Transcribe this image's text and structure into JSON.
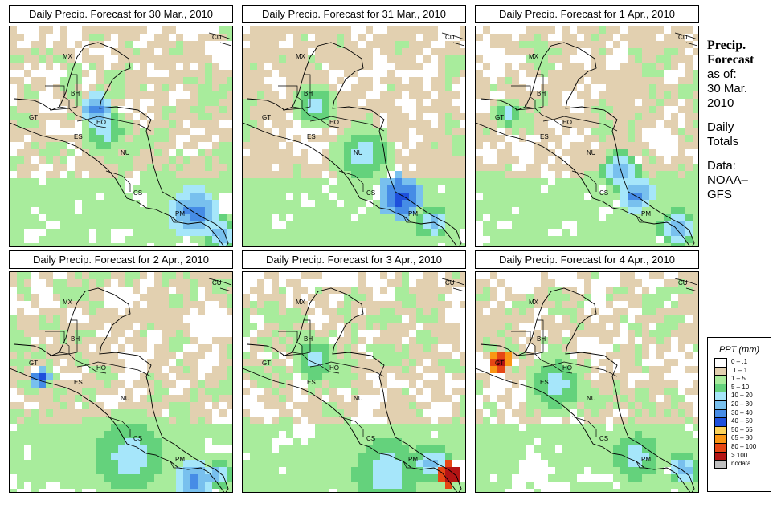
{
  "panels": [
    {
      "title": "Daily Precip. Forecast for  30 Mar., 2010"
    },
    {
      "title": "Daily Precip. Forecast for  31 Mar., 2010"
    },
    {
      "title": "Daily Precip. Forecast for  1 Apr., 2010"
    },
    {
      "title": "Daily Precip. Forecast for  2 Apr., 2010"
    },
    {
      "title": "Daily Precip. Forecast for  3 Apr., 2010"
    },
    {
      "title": "Daily Precip. Forecast for  4 Apr., 2010"
    }
  ],
  "country_labels": [
    "MX",
    "CU",
    "BH",
    "GT",
    "HO",
    "ES",
    "NU",
    "CS",
    "PM"
  ],
  "sidebar": {
    "heading_1": "Precip.",
    "heading_2": "Forecast",
    "as_of": "as of:",
    "date_1": "30 Mar.",
    "date_2": "2010",
    "daily_1": "Daily",
    "daily_2": "Totals",
    "data_1": "Data:",
    "data_2": "NOAA–",
    "data_3": "GFS"
  },
  "legend": {
    "title": "PPT (mm)",
    "items": [
      {
        "label": "0 – .1",
        "color": "#ffffff"
      },
      {
        "label": ".1 – 1",
        "color": "#e2d0b0"
      },
      {
        "label": "1 – 5",
        "color": "#a8ec9c"
      },
      {
        "label": "5 – 10",
        "color": "#64d27c"
      },
      {
        "label": "10 – 20",
        "color": "#a6e6fa"
      },
      {
        "label": "20 – 30",
        "color": "#78c0ee"
      },
      {
        "label": "30 – 40",
        "color": "#468ce6"
      },
      {
        "label": "40 – 50",
        "color": "#1e50dc"
      },
      {
        "label": "50 – 65",
        "color": "#fad25a"
      },
      {
        "label": "65 – 80",
        "color": "#fa9614"
      },
      {
        "label": "80 – 100",
        "color": "#e64614"
      },
      {
        "label": "> 100",
        "color": "#b41414"
      },
      {
        "label": "nodata",
        "color": "#bebebe"
      }
    ]
  }
}
